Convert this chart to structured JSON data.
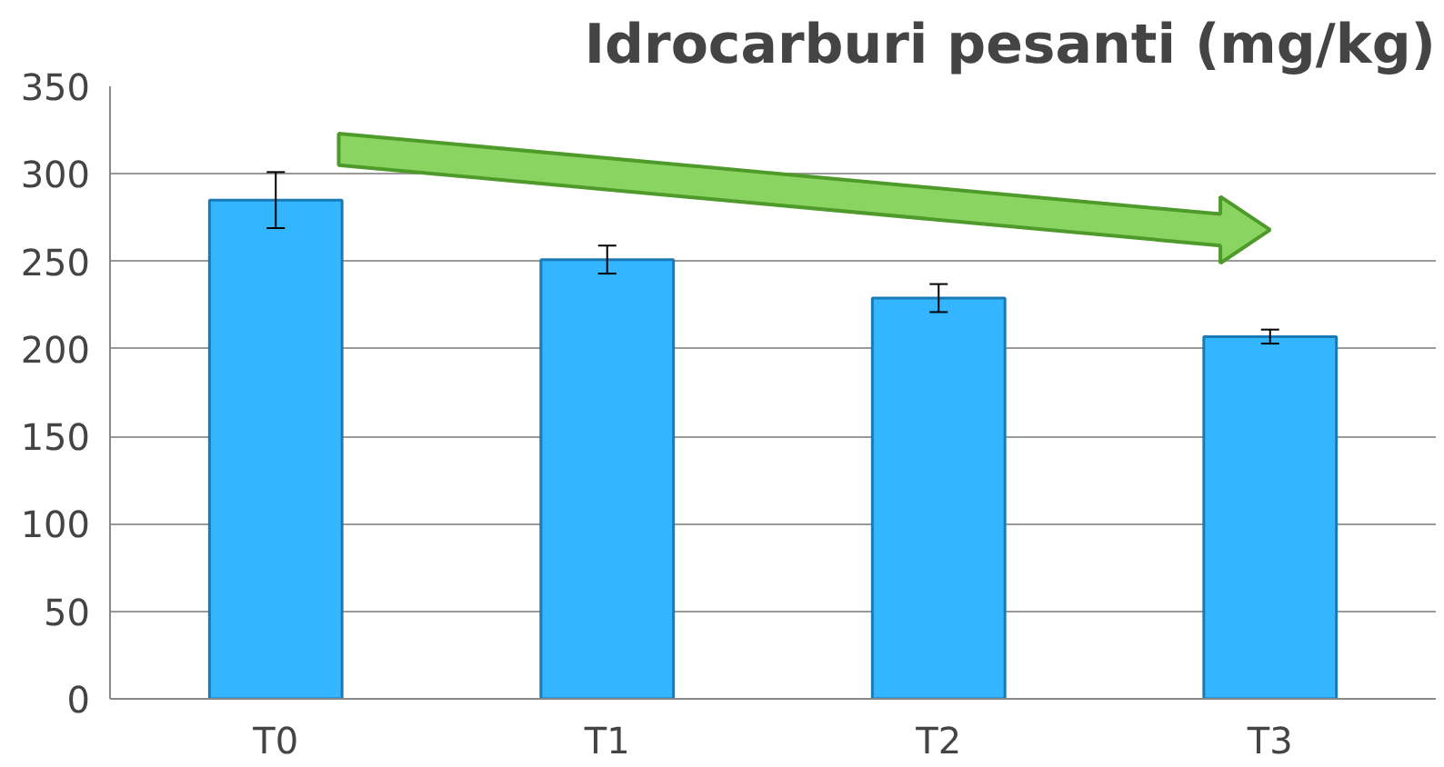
{
  "chart_data": {
    "type": "bar",
    "title": "Idrocarburi pesanti (mg/kg)",
    "categories": [
      "T0",
      "T1",
      "T2",
      "T3"
    ],
    "values": [
      285,
      251,
      229,
      207
    ],
    "errors": [
      16,
      8,
      8,
      4
    ],
    "color": "#33b5ff",
    "ylim": [
      0,
      350
    ],
    "yticks": [
      0,
      50,
      100,
      150,
      200,
      250,
      300,
      350
    ],
    "grid": "y"
  }
}
